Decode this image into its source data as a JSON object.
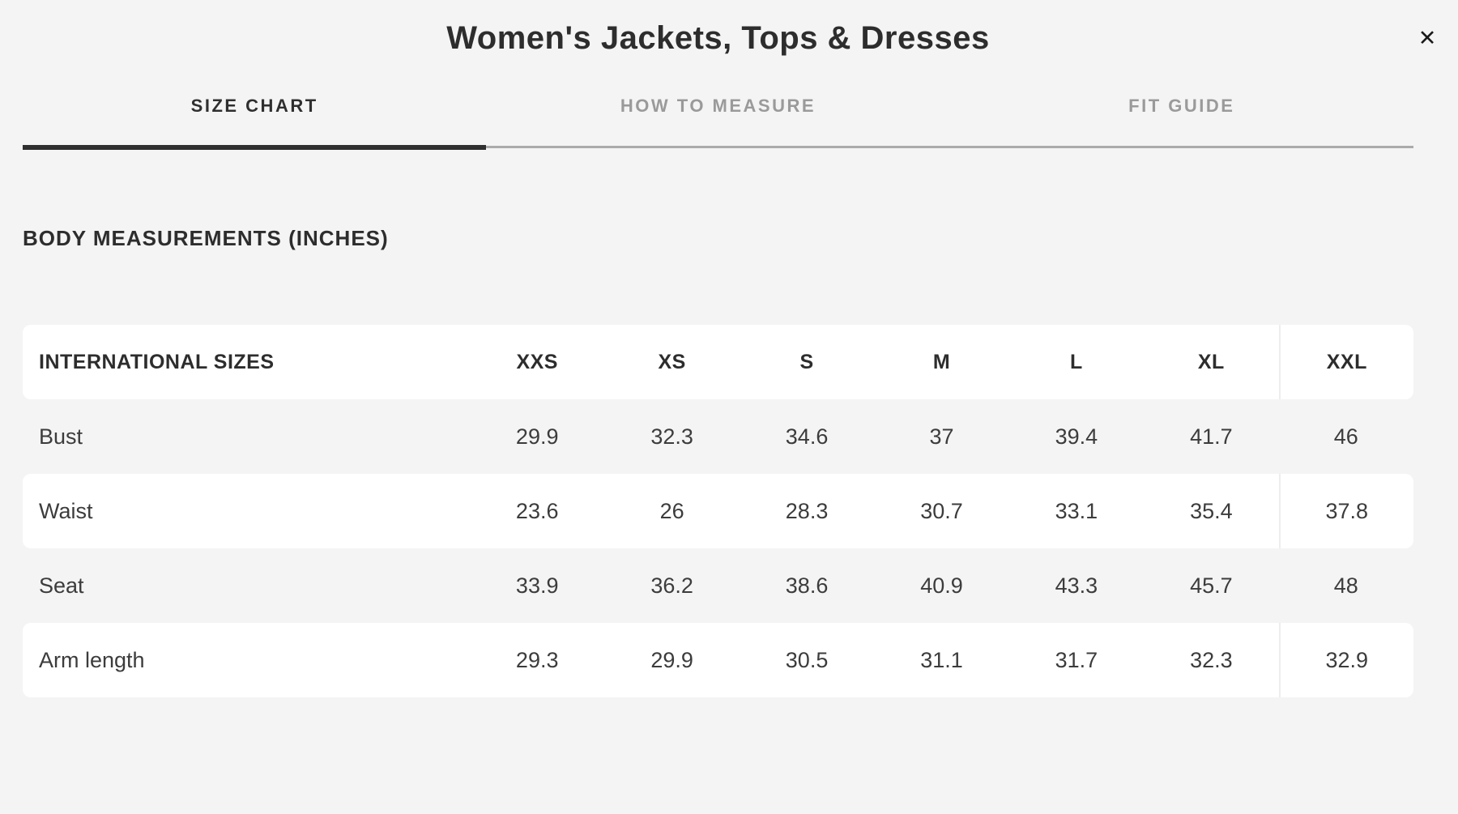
{
  "modal": {
    "title": "Women's Jackets, Tops & Dresses",
    "close_icon": "✕"
  },
  "tabs": [
    {
      "label": "SIZE CHART",
      "active": true
    },
    {
      "label": "HOW TO MEASURE",
      "active": false
    },
    {
      "label": "FIT GUIDE",
      "active": false
    }
  ],
  "section_heading": "BODY MEASUREMENTS (INCHES)",
  "table": {
    "header_label": "INTERNATIONAL SIZES",
    "sizes": [
      "XXS",
      "XS",
      "S",
      "M",
      "L",
      "XL",
      "XXL"
    ],
    "rows": [
      {
        "label": "Bust",
        "values": [
          "29.9",
          "32.3",
          "34.6",
          "37",
          "39.4",
          "41.7",
          "46"
        ]
      },
      {
        "label": "Waist",
        "values": [
          "23.6",
          "26",
          "28.3",
          "30.7",
          "33.1",
          "35.4",
          "37.8"
        ]
      },
      {
        "label": "Seat",
        "values": [
          "33.9",
          "36.2",
          "38.6",
          "40.9",
          "43.3",
          "45.7",
          "48"
        ]
      },
      {
        "label": "Arm length",
        "values": [
          "29.3",
          "29.9",
          "30.5",
          "31.1",
          "31.7",
          "32.3",
          "32.9"
        ]
      }
    ]
  },
  "colors": {
    "background": "#f4f4f4",
    "row_band": "#ffffff",
    "text_primary": "#2f2f2f",
    "tab_inactive": "#9a9a9a",
    "tab_underline": "#ababab",
    "active_underline": "#2f2f2f",
    "column_divider": "#ededed"
  }
}
